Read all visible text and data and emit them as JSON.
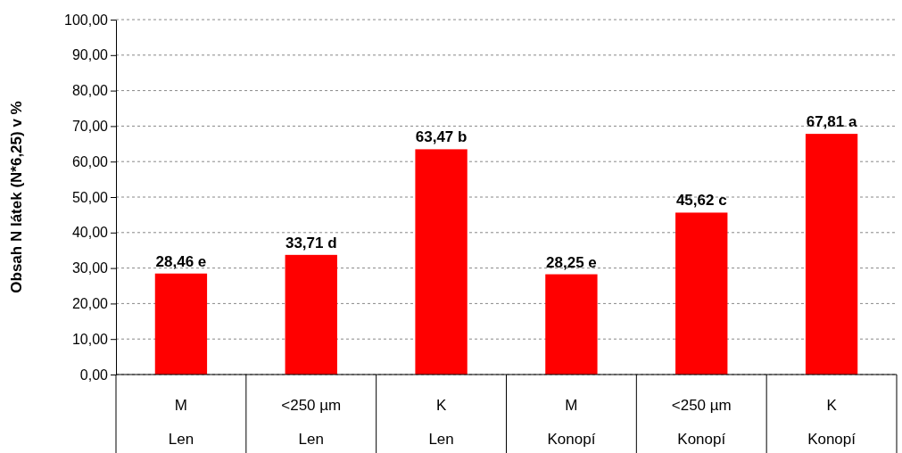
{
  "chart_data": {
    "type": "bar",
    "ylabel": "Obsah N látek (N*6,25) v %",
    "categories": [
      "M\nLen",
      "<250 µm\nLen",
      "K\nLen",
      "M\nKonopí",
      "<250 µm\nKonopí",
      "K\nKonopí"
    ],
    "values": [
      28.46,
      33.71,
      63.47,
      28.25,
      45.62,
      67.81
    ],
    "value_labels": [
      "28,46 e",
      "33,71 d",
      "63,47 b",
      "28,25 e",
      "45,62 c",
      "67,81 a"
    ],
    "color": "#ff0000",
    "ylim": [
      0,
      100
    ],
    "yticks": [
      {
        "value": 0,
        "label": "0,00"
      },
      {
        "value": 10,
        "label": "10,00"
      },
      {
        "value": 20,
        "label": "20,00"
      },
      {
        "value": 30,
        "label": "30,00"
      },
      {
        "value": 40,
        "label": "40,00"
      },
      {
        "value": 50,
        "label": "50,00"
      },
      {
        "value": 60,
        "label": "60,00"
      },
      {
        "value": 70,
        "label": "70,00"
      },
      {
        "value": 80,
        "label": "80,00"
      },
      {
        "value": 90,
        "label": "90,00"
      },
      {
        "value": 100,
        "label": "100,00"
      }
    ],
    "grid": "y"
  }
}
